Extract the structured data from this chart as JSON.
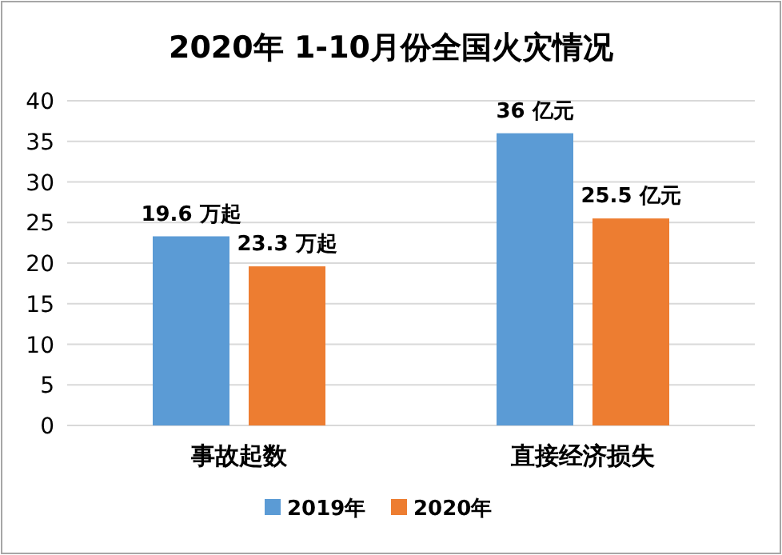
{
  "chart_data": {
    "type": "bar",
    "title": "2020年 1-10月份全国火灾情况",
    "categories": [
      "事故起数",
      "直接经济损失"
    ],
    "series": [
      {
        "name": "2019年",
        "color": "#5b9bd5",
        "values": [
          23.3,
          36
        ],
        "value_labels": [
          null,
          "36 亿元"
        ]
      },
      {
        "name": "2020年",
        "color": "#ed7d31",
        "values": [
          19.6,
          25.5
        ],
        "value_labels": [
          null,
          "25.5 亿元"
        ]
      }
    ],
    "annotations": [
      "19.6 万起",
      "23.3 万起"
    ],
    "ylim": [
      0,
      40
    ],
    "yticks": [
      0,
      5,
      10,
      15,
      20,
      25,
      30,
      35,
      40
    ],
    "grid": "y",
    "legend": "bottom"
  }
}
